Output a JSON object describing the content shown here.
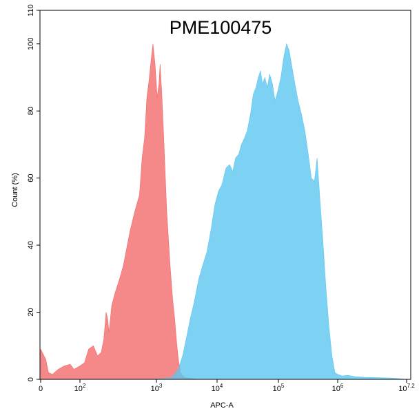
{
  "chart_data": {
    "type": "area",
    "title": "PME100475",
    "xlabel": "APC-A",
    "ylabel": "Count (%)",
    "xscale": "biexponential-log",
    "xlim": [
      0,
      15848932
    ],
    "ylim": [
      0,
      110
    ],
    "grid": false,
    "legend": "none",
    "x_tick_labels": [
      {
        "label": "0",
        "value": 0
      },
      {
        "label": "10",
        "exp": "2",
        "value": 100
      },
      {
        "label": "10",
        "exp": "3",
        "value": 1000
      },
      {
        "label": "10",
        "exp": "4",
        "value": 10000
      },
      {
        "label": "10",
        "exp": "5",
        "value": 100000
      },
      {
        "label": "10",
        "exp": "6",
        "value": 1000000
      },
      {
        "label": "10",
        "exp": "7.2",
        "value": 15848932
      }
    ],
    "y_tick_labels": [
      "0",
      "20",
      "40",
      "60",
      "80",
      "100",
      "110"
    ],
    "y_ticks": [
      0,
      20,
      40,
      60,
      80,
      100,
      110
    ],
    "series": [
      {
        "color": "#f36a6a",
        "points": [
          [
            0,
            9
          ],
          [
            13,
            6
          ],
          [
            20,
            2
          ],
          [
            30,
            1.5
          ],
          [
            45,
            3
          ],
          [
            60,
            4
          ],
          [
            75,
            4.5
          ],
          [
            85,
            3
          ],
          [
            100,
            4
          ],
          [
            115,
            5
          ],
          [
            130,
            9
          ],
          [
            150,
            10
          ],
          [
            170,
            7
          ],
          [
            190,
            8
          ],
          [
            205,
            12
          ],
          [
            220,
            20
          ],
          [
            230,
            18
          ],
          [
            240,
            14
          ],
          [
            260,
            22
          ],
          [
            290,
            26
          ],
          [
            330,
            30
          ],
          [
            370,
            34
          ],
          [
            400,
            38
          ],
          [
            450,
            44
          ],
          [
            520,
            50
          ],
          [
            600,
            55
          ],
          [
            650,
            66
          ],
          [
            700,
            72
          ],
          [
            750,
            84
          ],
          [
            800,
            89
          ],
          [
            860,
            96
          ],
          [
            900,
            100
          ],
          [
            960,
            94
          ],
          [
            1030,
            84
          ],
          [
            1100,
            88
          ],
          [
            1150,
            94
          ],
          [
            1220,
            86
          ],
          [
            1320,
            72
          ],
          [
            1480,
            50
          ],
          [
            1680,
            34
          ],
          [
            1850,
            24
          ],
          [
            2000,
            18
          ],
          [
            2150,
            11
          ],
          [
            2300,
            6
          ],
          [
            2500,
            2
          ],
          [
            2700,
            1
          ],
          [
            3000,
            0.5
          ],
          [
            3600,
            0.3
          ],
          [
            4500,
            0.1
          ],
          [
            6000,
            0
          ]
        ]
      },
      {
        "color": "#5cc7f0",
        "points": [
          [
            800,
            0
          ],
          [
            1300,
            0.2
          ],
          [
            1800,
            0.5
          ],
          [
            2300,
            3
          ],
          [
            2700,
            7
          ],
          [
            3100,
            12
          ],
          [
            3600,
            18
          ],
          [
            4200,
            23
          ],
          [
            5000,
            30
          ],
          [
            5800,
            34
          ],
          [
            6800,
            38
          ],
          [
            8000,
            45
          ],
          [
            9200,
            52
          ],
          [
            10500,
            56
          ],
          [
            12000,
            58
          ],
          [
            14000,
            63
          ],
          [
            16000,
            64
          ],
          [
            18000,
            62
          ],
          [
            20000,
            66
          ],
          [
            22500,
            67
          ],
          [
            25000,
            70
          ],
          [
            28000,
            72
          ],
          [
            31000,
            74
          ],
          [
            35000,
            79
          ],
          [
            39000,
            85
          ],
          [
            43000,
            87
          ],
          [
            47000,
            90
          ],
          [
            51000,
            92
          ],
          [
            55000,
            88
          ],
          [
            60000,
            90
          ],
          [
            66000,
            87
          ],
          [
            72000,
            91
          ],
          [
            80000,
            88
          ],
          [
            88000,
            83
          ],
          [
            98000,
            86
          ],
          [
            110000,
            90
          ],
          [
            123000,
            96
          ],
          [
            137000,
            100
          ],
          [
            152000,
            98
          ],
          [
            170000,
            93
          ],
          [
            190000,
            88
          ],
          [
            215000,
            83
          ],
          [
            245000,
            79
          ],
          [
            280000,
            74
          ],
          [
            320000,
            67
          ],
          [
            360000,
            60
          ],
          [
            405000,
            59
          ],
          [
            450000,
            66
          ],
          [
            500000,
            54
          ],
          [
            560000,
            42
          ],
          [
            630000,
            28
          ],
          [
            710000,
            16
          ],
          [
            800000,
            7
          ],
          [
            900000,
            2
          ],
          [
            1000000,
            1.5
          ],
          [
            1200000,
            1
          ],
          [
            1500000,
            1.2
          ],
          [
            2000000,
            0.8
          ],
          [
            3000000,
            0.6
          ],
          [
            5000000,
            0.5
          ],
          [
            8000000,
            0.4
          ],
          [
            12000000,
            0.2
          ],
          [
            15800000,
            0
          ]
        ]
      }
    ]
  }
}
